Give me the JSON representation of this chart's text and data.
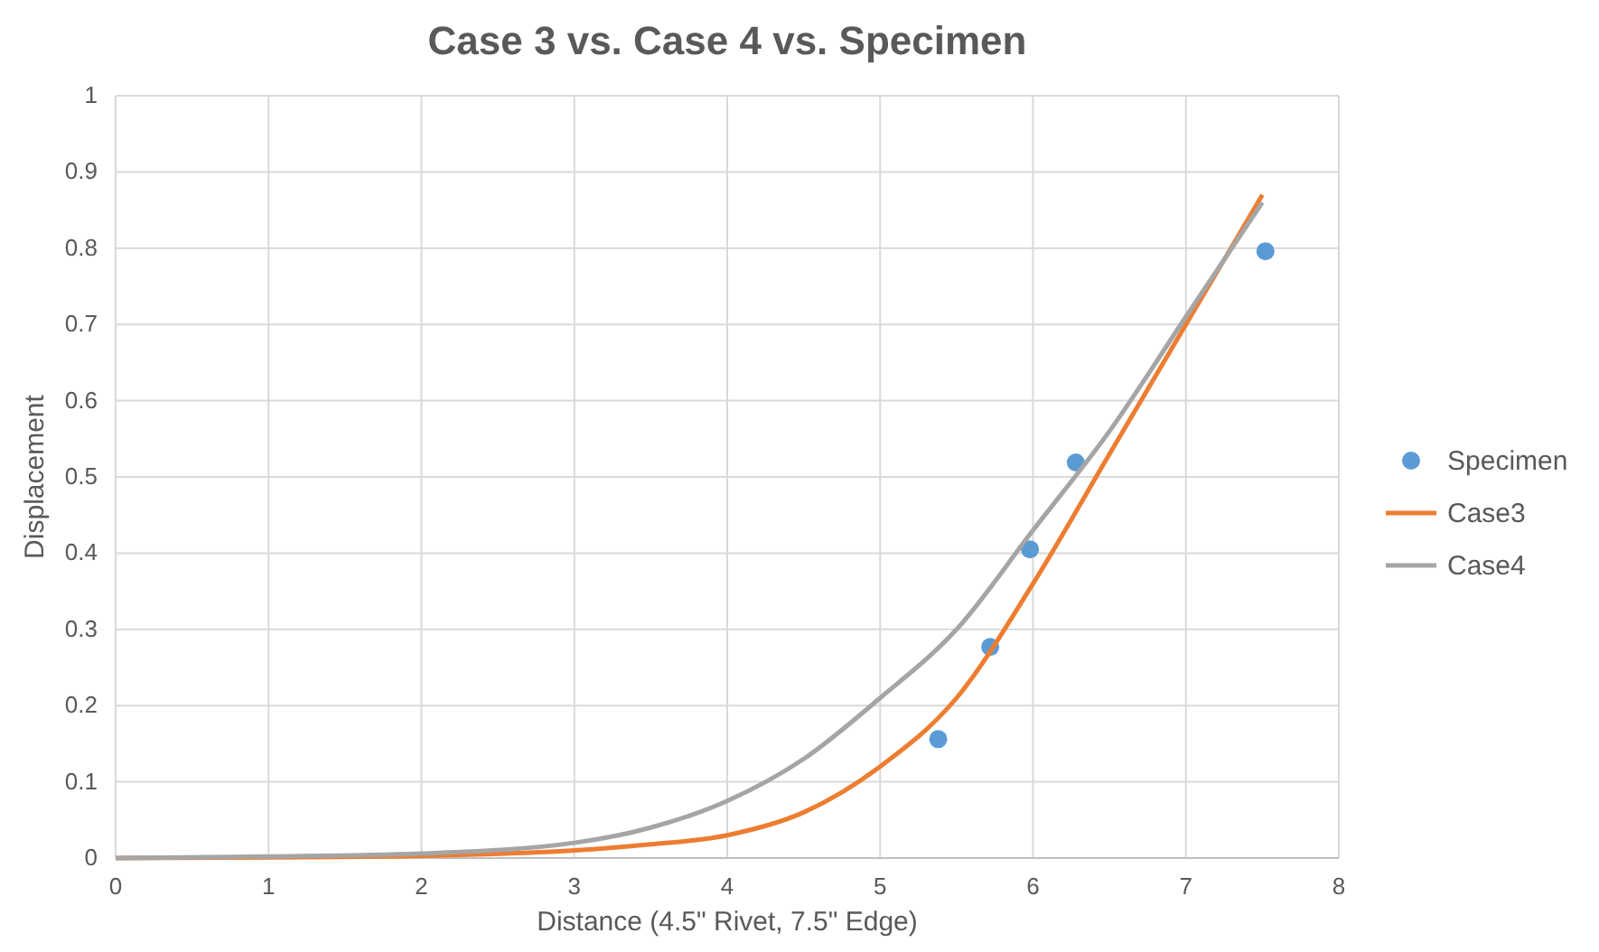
{
  "chart_data": {
    "type": "line",
    "title": "Case 3 vs. Case 4 vs. Specimen",
    "xlabel": "Distance (4.5\" Rivet, 7.5\" Edge)",
    "ylabel": "Displacement",
    "xlim": [
      0,
      8
    ],
    "xticks": [
      0,
      1,
      2,
      3,
      4,
      5,
      6,
      7,
      8
    ],
    "ylim": [
      0,
      1
    ],
    "yticks": [
      0,
      0.1,
      0.2,
      0.3,
      0.4,
      0.5,
      0.6,
      0.7,
      0.8,
      0.9,
      1
    ],
    "grid": true,
    "legend": "right",
    "series": [
      {
        "name": "Specimen",
        "type": "scatter",
        "marker": "circle",
        "color": "#5b9bd5",
        "x": [
          5.38,
          5.72,
          5.98,
          6.28,
          7.52
        ],
        "values": [
          0.156,
          0.277,
          0.405,
          0.519,
          0.796
        ]
      },
      {
        "name": "Case3",
        "marker": "none",
        "color": "#ed7d31",
        "x": [
          0,
          1,
          2,
          3,
          3.5,
          4,
          4.5,
          5,
          5.5,
          6,
          6.5,
          7,
          7.5
        ],
        "values": [
          0,
          0.001,
          0.003,
          0.01,
          0.018,
          0.03,
          0.06,
          0.12,
          0.21,
          0.36,
          0.53,
          0.7,
          0.87
        ]
      },
      {
        "name": "Case4",
        "marker": "none",
        "color": "#a5a5a5",
        "x": [
          0,
          1,
          2,
          3,
          3.5,
          4,
          4.5,
          5,
          5.5,
          6,
          6.5,
          7,
          7.5
        ],
        "values": [
          0,
          0.002,
          0.006,
          0.02,
          0.04,
          0.075,
          0.13,
          0.21,
          0.3,
          0.43,
          0.56,
          0.71,
          0.86
        ]
      }
    ]
  }
}
